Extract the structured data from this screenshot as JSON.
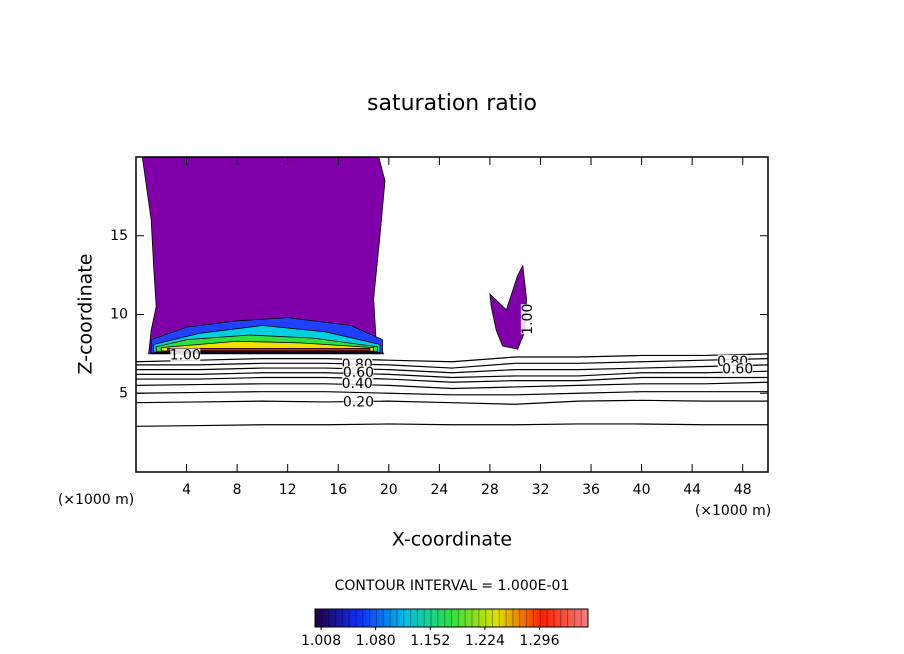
{
  "chart_data": {
    "type": "contour",
    "title": "saturation ratio",
    "x_label": "X-coordinate",
    "y_label": "Z-coordinate",
    "x_unit": "(×1000 m)",
    "y_unit": "(×1000 m)",
    "xlim": [
      0,
      50
    ],
    "ylim": [
      0,
      20
    ],
    "xticks": [
      4,
      8,
      12,
      16,
      20,
      24,
      28,
      32,
      36,
      40,
      44,
      48
    ],
    "yticks": [
      5,
      10,
      15
    ],
    "contour_interval": "CONTOUR INTERVAL = 1.000E-01",
    "line_color": "#000000",
    "x": [
      0,
      5,
      10,
      15,
      20,
      25,
      30,
      35,
      40,
      45,
      50
    ],
    "contours": [
      {
        "level": 0.1,
        "y": [
          2.9,
          2.95,
          3.0,
          3.0,
          3.05,
          3.0,
          3.0,
          3.05,
          3.05,
          3.0,
          3.0
        ]
      },
      {
        "level": 0.2,
        "y": [
          4.4,
          4.45,
          4.5,
          4.45,
          4.5,
          4.4,
          4.3,
          4.5,
          4.55,
          4.5,
          4.5
        ]
      },
      {
        "level": 0.3,
        "y": [
          5.0,
          5.05,
          5.1,
          5.1,
          5.0,
          4.9,
          4.9,
          5.0,
          5.1,
          5.1,
          5.1
        ]
      },
      {
        "level": 0.4,
        "y": [
          5.5,
          5.55,
          5.6,
          5.6,
          5.5,
          5.3,
          5.4,
          5.5,
          5.6,
          5.6,
          5.7
        ]
      },
      {
        "level": 0.5,
        "y": [
          5.9,
          5.9,
          6.0,
          6.0,
          5.9,
          5.7,
          5.8,
          5.8,
          6.0,
          6.0,
          6.0
        ]
      },
      {
        "level": 0.6,
        "y": [
          6.2,
          6.2,
          6.3,
          6.3,
          6.2,
          6.0,
          6.1,
          6.1,
          6.3,
          6.3,
          6.4
        ]
      },
      {
        "level": 0.7,
        "y": [
          6.5,
          6.5,
          6.6,
          6.6,
          6.5,
          6.3,
          6.5,
          6.5,
          6.6,
          6.7,
          6.8
        ]
      },
      {
        "level": 0.8,
        "y": [
          6.8,
          6.8,
          6.9,
          6.9,
          6.8,
          6.6,
          6.9,
          6.9,
          7.0,
          7.1,
          7.2
        ]
      },
      {
        "level": 0.9,
        "y": [
          7.0,
          7.1,
          7.2,
          7.2,
          7.1,
          7.0,
          7.3,
          7.3,
          7.4,
          7.4,
          7.5
        ]
      }
    ],
    "filled_regions": [
      {
        "color": "#7f00a8",
        "x": [
          0.5,
          19.2,
          19.7,
          19.3,
          18.8,
          19.0,
          19.6,
          1.0,
          1.2,
          1.6,
          1.4,
          1.2
        ],
        "y": [
          20,
          20,
          18.5,
          15,
          11,
          8.3,
          7.5,
          7.5,
          9,
          10.5,
          13,
          16
        ]
      },
      {
        "color": "#7f00a8",
        "x": [
          28.0,
          29.3,
          30.2,
          30.6,
          30.9,
          30.8,
          30.2,
          29.0,
          28.5,
          28.1
        ],
        "y": [
          11.3,
          10.3,
          12.5,
          13.1,
          11,
          9,
          7.8,
          8.0,
          9,
          10.5
        ]
      },
      {
        "color": "#2040ff",
        "x": [
          1.2,
          19.5,
          19.5,
          17,
          12,
          8,
          4,
          1.2
        ],
        "y": [
          7.55,
          7.55,
          8.4,
          9.3,
          9.8,
          9.6,
          9.2,
          8.4
        ]
      },
      {
        "color": "#00d0e0",
        "x": [
          1.4,
          19.3,
          19.3,
          15,
          10,
          5,
          1.4
        ],
        "y": [
          7.6,
          7.6,
          8.1,
          8.9,
          9.3,
          8.8,
          8.1
        ]
      },
      {
        "color": "#30e040",
        "x": [
          1.6,
          19.1,
          19.1,
          14,
          9,
          4,
          1.6
        ],
        "y": [
          7.65,
          7.65,
          7.95,
          8.5,
          8.7,
          8.4,
          7.95
        ]
      },
      {
        "color": "#f0e000",
        "x": [
          2.0,
          18.8,
          18.8,
          13,
          8,
          2.0
        ],
        "y": [
          7.68,
          7.68,
          7.9,
          8.2,
          8.3,
          7.9
        ]
      },
      {
        "color": "#f02010",
        "x": [
          2.5,
          18.5,
          18.5,
          2.5
        ],
        "y": [
          7.7,
          7.7,
          7.85,
          7.85
        ]
      }
    ],
    "contour_labels": [
      {
        "text": "1.00",
        "x": 3.9,
        "y": 7.4,
        "vertical": false
      },
      {
        "text": "0.80",
        "x": 17.5,
        "y": 6.8,
        "vertical": false
      },
      {
        "text": "0.60",
        "x": 17.6,
        "y": 6.3,
        "vertical": false
      },
      {
        "text": "0.40",
        "x": 17.5,
        "y": 5.6,
        "vertical": false
      },
      {
        "text": "0.20",
        "x": 17.6,
        "y": 4.4,
        "vertical": false
      },
      {
        "text": "0.80",
        "x": 47.2,
        "y": 7.0,
        "vertical": false
      },
      {
        "text": "0.60",
        "x": 47.6,
        "y": 6.5,
        "vertical": false
      },
      {
        "text": "1.00",
        "x": 31.0,
        "y": 9.7,
        "vertical": true
      }
    ],
    "colorbar": {
      "clim": [
        1.0,
        1.36
      ],
      "colors": [
        "#200040",
        "#1030ff",
        "#00c0e0",
        "#30e040",
        "#e0e000",
        "#ff2000",
        "#f08080"
      ],
      "ticks": [
        1.008,
        {
          "value": 1.08,
          "label": "1.080"
        },
        1.152,
        1.224,
        1.296
      ]
    }
  }
}
